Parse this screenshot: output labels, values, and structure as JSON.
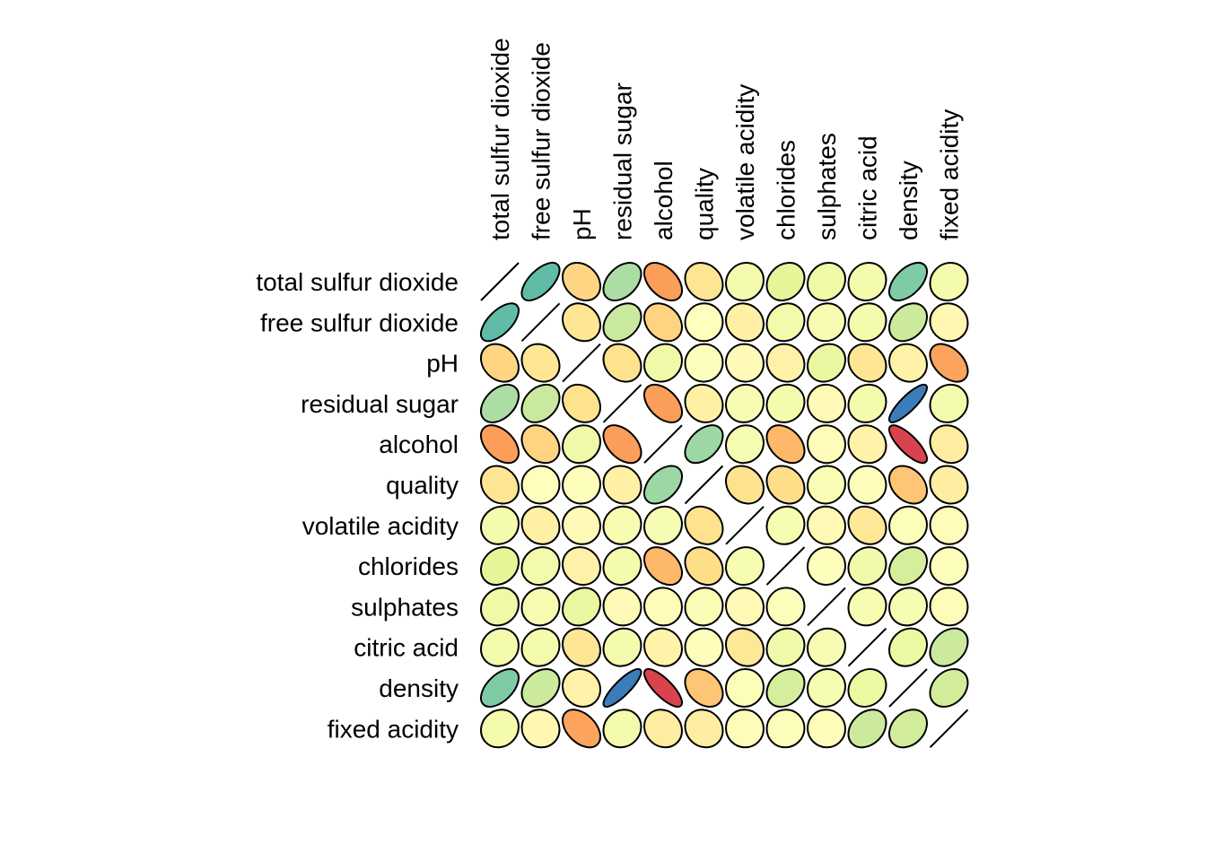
{
  "chart_data": {
    "type": "heatmap",
    "subtype": "correlation-ellipse-matrix",
    "title": "",
    "variables": [
      "total sulfur dioxide",
      "free sulfur dioxide",
      "pH",
      "residual sugar",
      "alcohol",
      "quality",
      "volatile acidity",
      "chlorides",
      "sulphates",
      "citric acid",
      "density",
      "fixed acidity"
    ],
    "column_labels": [
      "total sulfur dioxide",
      "free sulfur dioxide",
      "pH",
      "residual sugar",
      "alcohol",
      "quality",
      "volatile acidity",
      "chlorides",
      "sulphates",
      "citric acid",
      "density",
      "fixed acidity"
    ],
    "row_labels": [
      "total sulfur dioxide",
      "free sulfur dioxide",
      "pH",
      "residual sugar",
      "alcohol",
      "quality",
      "volatile acidity",
      "chlorides",
      "sulphates",
      "citric acid",
      "density",
      "fixed acidity"
    ],
    "matrix": [
      [
        1,
        0.62,
        -0.24,
        0.4,
        -0.45,
        -0.17,
        0.09,
        0.2,
        0.13,
        0.09,
        0.53,
        0.09
      ],
      [
        0.62,
        1,
        -0.16,
        0.3,
        -0.25,
        0.01,
        -0.1,
        0.1,
        0.06,
        0.09,
        0.29,
        -0.05
      ],
      [
        -0.24,
        -0.16,
        1,
        -0.19,
        0.12,
        0.02,
        -0.03,
        -0.09,
        0.16,
        -0.16,
        -0.09,
        -0.43
      ],
      [
        0.4,
        0.3,
        -0.19,
        1,
        -0.45,
        -0.1,
        0.06,
        0.09,
        -0.03,
        0.09,
        0.84,
        0.09
      ],
      [
        -0.45,
        -0.25,
        0.12,
        -0.45,
        1,
        0.44,
        0.07,
        -0.36,
        -0.02,
        -0.08,
        -0.78,
        -0.12
      ],
      [
        -0.17,
        0.01,
        0.02,
        -0.1,
        0.44,
        1,
        -0.19,
        -0.21,
        0.05,
        -0.01,
        -0.31,
        -0.11
      ],
      [
        0.09,
        -0.1,
        -0.03,
        0.06,
        0.07,
        -0.19,
        1,
        0.07,
        -0.04,
        -0.15,
        0.03,
        -0.02
      ],
      [
        0.2,
        0.1,
        -0.09,
        0.09,
        -0.36,
        -0.21,
        0.07,
        1,
        0.02,
        0.11,
        0.26,
        0.02
      ],
      [
        0.13,
        0.06,
        0.16,
        -0.03,
        -0.02,
        0.05,
        -0.04,
        0.02,
        1,
        0.06,
        0.07,
        -0.02
      ],
      [
        0.09,
        0.09,
        -0.16,
        0.09,
        -0.08,
        -0.01,
        -0.15,
        0.11,
        0.06,
        1,
        0.15,
        0.29
      ],
      [
        0.53,
        0.29,
        -0.09,
        0.84,
        -0.78,
        -0.31,
        0.03,
        0.26,
        0.07,
        0.15,
        1,
        0.27
      ],
      [
        0.09,
        -0.05,
        -0.43,
        0.09,
        -0.12,
        -0.11,
        -0.02,
        0.02,
        -0.02,
        0.29,
        0.27,
        1
      ]
    ],
    "color_scale": {
      "stops": [
        {
          "value": -1,
          "color": "#9e0142"
        },
        {
          "value": -0.8,
          "color": "#d53e4f"
        },
        {
          "value": -0.6,
          "color": "#f46d43"
        },
        {
          "value": -0.4,
          "color": "#fdae61"
        },
        {
          "value": -0.2,
          "color": "#fee08b"
        },
        {
          "value": 0,
          "color": "#ffffbf"
        },
        {
          "value": 0.2,
          "color": "#e6f598"
        },
        {
          "value": 0.4,
          "color": "#abdda4"
        },
        {
          "value": 0.6,
          "color": "#66c2a5"
        },
        {
          "value": 0.8,
          "color": "#3288bd"
        },
        {
          "value": 1,
          "color": "#5e4fa2"
        }
      ]
    },
    "diagonal": "line"
  }
}
